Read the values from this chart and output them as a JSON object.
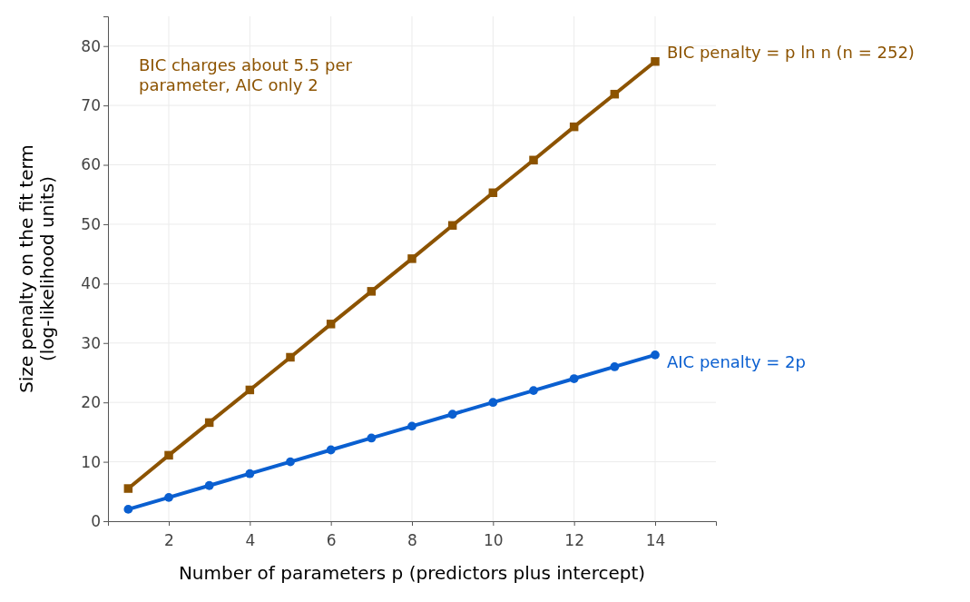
{
  "chart_data": {
    "type": "line",
    "xlabel": "Number of parameters p (predictors plus intercept)",
    "ylabel": "Size penalty on the fit term\n(log-likelihood units)",
    "annotations": [
      "BIC charges about 5.5 per\nparameter, AIC only 2"
    ],
    "x": [
      1,
      2,
      3,
      4,
      5,
      6,
      7,
      8,
      9,
      10,
      11,
      12,
      13,
      14
    ],
    "series": [
      {
        "name": "BIC penalty = p ln n (n = 252)",
        "color": "#8c5300",
        "marker": "square",
        "values": [
          5.5,
          11.1,
          16.6,
          22.1,
          27.6,
          33.2,
          38.7,
          44.2,
          49.8,
          55.3,
          60.8,
          66.4,
          71.9,
          77.4
        ]
      },
      {
        "name": "AIC penalty = 2p",
        "color": "#0a5fd0",
        "marker": "circle",
        "values": [
          2,
          4,
          6,
          8,
          10,
          12,
          14,
          16,
          18,
          20,
          22,
          24,
          26,
          28
        ]
      }
    ],
    "xlim": [
      0.5,
      15.5
    ],
    "xticks": [
      2,
      4,
      6,
      8,
      10,
      12,
      14
    ],
    "ylim": [
      0,
      85
    ],
    "yticks": [
      0,
      10,
      20,
      30,
      40,
      50,
      60,
      70,
      80
    ],
    "grid": true,
    "line_style": "solid"
  }
}
